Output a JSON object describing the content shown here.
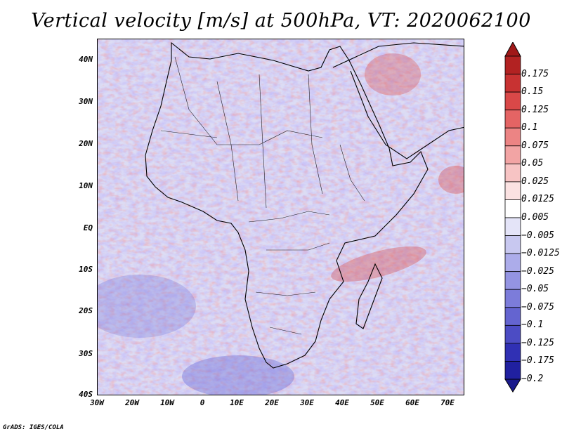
{
  "title": "Vertical velocity [m/s] at 500hPa, VT: 2020062100",
  "credit": "GrADS: IGES/COLA",
  "map": {
    "lat_labels": [
      "40N",
      "30N",
      "20N",
      "10N",
      "EQ",
      "10S",
      "20S",
      "30S",
      "40S"
    ],
    "lon_labels": [
      "30W",
      "20W",
      "10W",
      "0",
      "10E",
      "20E",
      "30E",
      "40E",
      "50E",
      "60E",
      "70E"
    ],
    "lon_range": [
      -30,
      75
    ],
    "lat_range": [
      -40,
      45
    ]
  },
  "colorbar": {
    "labels": [
      "0.175",
      "0.15",
      "0.125",
      "0.1",
      "0.075",
      "0.05",
      "0.025",
      "0.0125",
      "0.005",
      "−0.005",
      "−0.0125",
      "−0.025",
      "−0.05",
      "−0.075",
      "−0.1",
      "−0.125",
      "−0.175",
      "−0.2"
    ],
    "colors": [
      "#b22222",
      "#c83232",
      "#d94848",
      "#e46464",
      "#ec8484",
      "#f2a4a4",
      "#f7c4c4",
      "#fbe2e2",
      "#ffffff",
      "#e4e4f8",
      "#c8c8f0",
      "#acacea",
      "#9494e2",
      "#7c7cda",
      "#6464d0",
      "#4c4cc4",
      "#3030b4",
      "#2020a0"
    ],
    "top_arrow_color": "#a01818",
    "bottom_arrow_color": "#1a1a8c"
  }
}
